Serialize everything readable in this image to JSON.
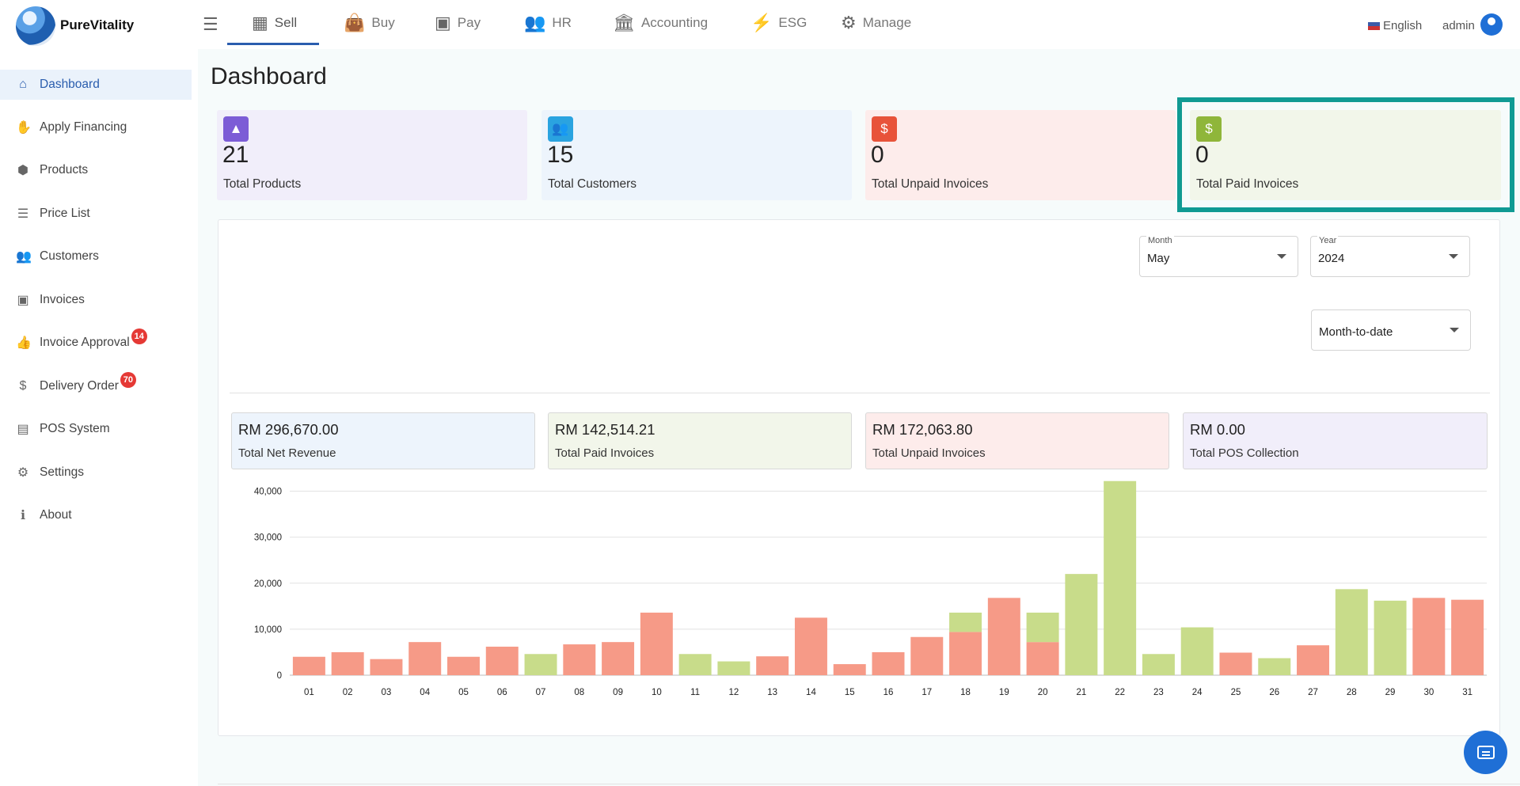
{
  "app": {
    "brand": "PureVitality"
  },
  "topnav": [
    {
      "label": "Sell",
      "icon": "store-icon"
    },
    {
      "label": "Buy",
      "icon": "shopping-bag-icon"
    },
    {
      "label": "Pay",
      "icon": "money-icon"
    },
    {
      "label": "HR",
      "icon": "people-icon"
    },
    {
      "label": "Accounting",
      "icon": "bank-icon"
    },
    {
      "label": "ESG",
      "icon": "bolt-icon"
    },
    {
      "label": "Manage",
      "icon": "gears-icon"
    }
  ],
  "header": {
    "language": "English",
    "user": "admin"
  },
  "sidebar": {
    "items": [
      {
        "label": "Dashboard",
        "icon": "home-icon"
      },
      {
        "label": "Apply Financing",
        "icon": "hand-money-icon"
      },
      {
        "label": "Products",
        "icon": "boxes-icon"
      },
      {
        "label": "Price List",
        "icon": "list-icon"
      },
      {
        "label": "Customers",
        "icon": "users-icon"
      },
      {
        "label": "Invoices",
        "icon": "money-bill-icon"
      },
      {
        "label": "Invoice Approval",
        "icon": "thumbs-up-icon",
        "badge": "14"
      },
      {
        "label": "Delivery Order",
        "icon": "dollar-icon",
        "badge": "70"
      },
      {
        "label": "POS System",
        "icon": "cash-register-icon"
      },
      {
        "label": "Settings",
        "icon": "gear-icon"
      },
      {
        "label": "About",
        "icon": "info-icon"
      }
    ]
  },
  "page": {
    "title": "Dashboard"
  },
  "stats": [
    {
      "value": "21",
      "label": "Total Products",
      "bg": "#f1eefa",
      "icon_bg": "#7c5cd6",
      "icon": "shapes-icon"
    },
    {
      "value": "15",
      "label": "Total Customers",
      "bg": "#edf4fc",
      "icon_bg": "#2aa3e0",
      "icon": "users-icon"
    },
    {
      "value": "0",
      "label": "Total Unpaid Invoices",
      "bg": "#fdeceb",
      "icon_bg": "#e8533a",
      "icon": "invoice-icon"
    },
    {
      "value": "0",
      "label": "Total Paid Invoices",
      "bg": "#f2f6ea",
      "icon_bg": "#8fb63a",
      "icon": "dollar-circle-icon"
    }
  ],
  "filters": {
    "month": {
      "label": "Month",
      "value": "May"
    },
    "year": {
      "label": "Year",
      "value": "2024"
    },
    "period": {
      "value": "Month-to-date"
    }
  },
  "kpis": [
    {
      "value": "RM 296,670.00",
      "label": "Total Net Revenue",
      "bg": "#edf4fc"
    },
    {
      "value": "RM 142,514.21",
      "label": "Total Paid Invoices",
      "bg": "#f2f6ea"
    },
    {
      "value": "RM 172,063.80",
      "label": "Total Unpaid Invoices",
      "bg": "#fdeceb"
    },
    {
      "value": "RM 0.00",
      "label": "Total POS Collection",
      "bg": "#f1eefa"
    }
  ],
  "chart_data": {
    "type": "bar",
    "stacked": true,
    "categories": [
      "01",
      "02",
      "03",
      "04",
      "05",
      "06",
      "07",
      "08",
      "09",
      "10",
      "11",
      "12",
      "13",
      "14",
      "15",
      "16",
      "17",
      "18",
      "19",
      "20",
      "21",
      "22",
      "23",
      "24",
      "25",
      "26",
      "27",
      "28",
      "29",
      "30",
      "31"
    ],
    "series": [
      {
        "color": "#f69a87",
        "values": [
          4000,
          5000,
          3500,
          7200,
          4000,
          6200,
          0,
          6700,
          7200,
          13600,
          0,
          0,
          4100,
          12500,
          2400,
          5000,
          8300,
          9400,
          16800,
          7200,
          0,
          0,
          0,
          0,
          4900,
          0,
          6500,
          0,
          0,
          16800,
          16400
        ]
      },
      {
        "color": "#c8dc8a",
        "values": [
          0,
          0,
          0,
          0,
          0,
          0,
          4600,
          0,
          0,
          0,
          4600,
          3000,
          0,
          0,
          0,
          0,
          0,
          4200,
          0,
          6400,
          22000,
          42200,
          4600,
          10400,
          0,
          3700,
          0,
          18700,
          16200,
          0,
          0
        ]
      }
    ],
    "ylim": [
      0,
      42500
    ],
    "yticks": [
      0,
      10000,
      20000,
      30000,
      40000
    ],
    "ytick_labels": [
      "0",
      "10,000",
      "20,000",
      "30,000",
      "40,000"
    ],
    "grid": true,
    "legend": "none"
  }
}
